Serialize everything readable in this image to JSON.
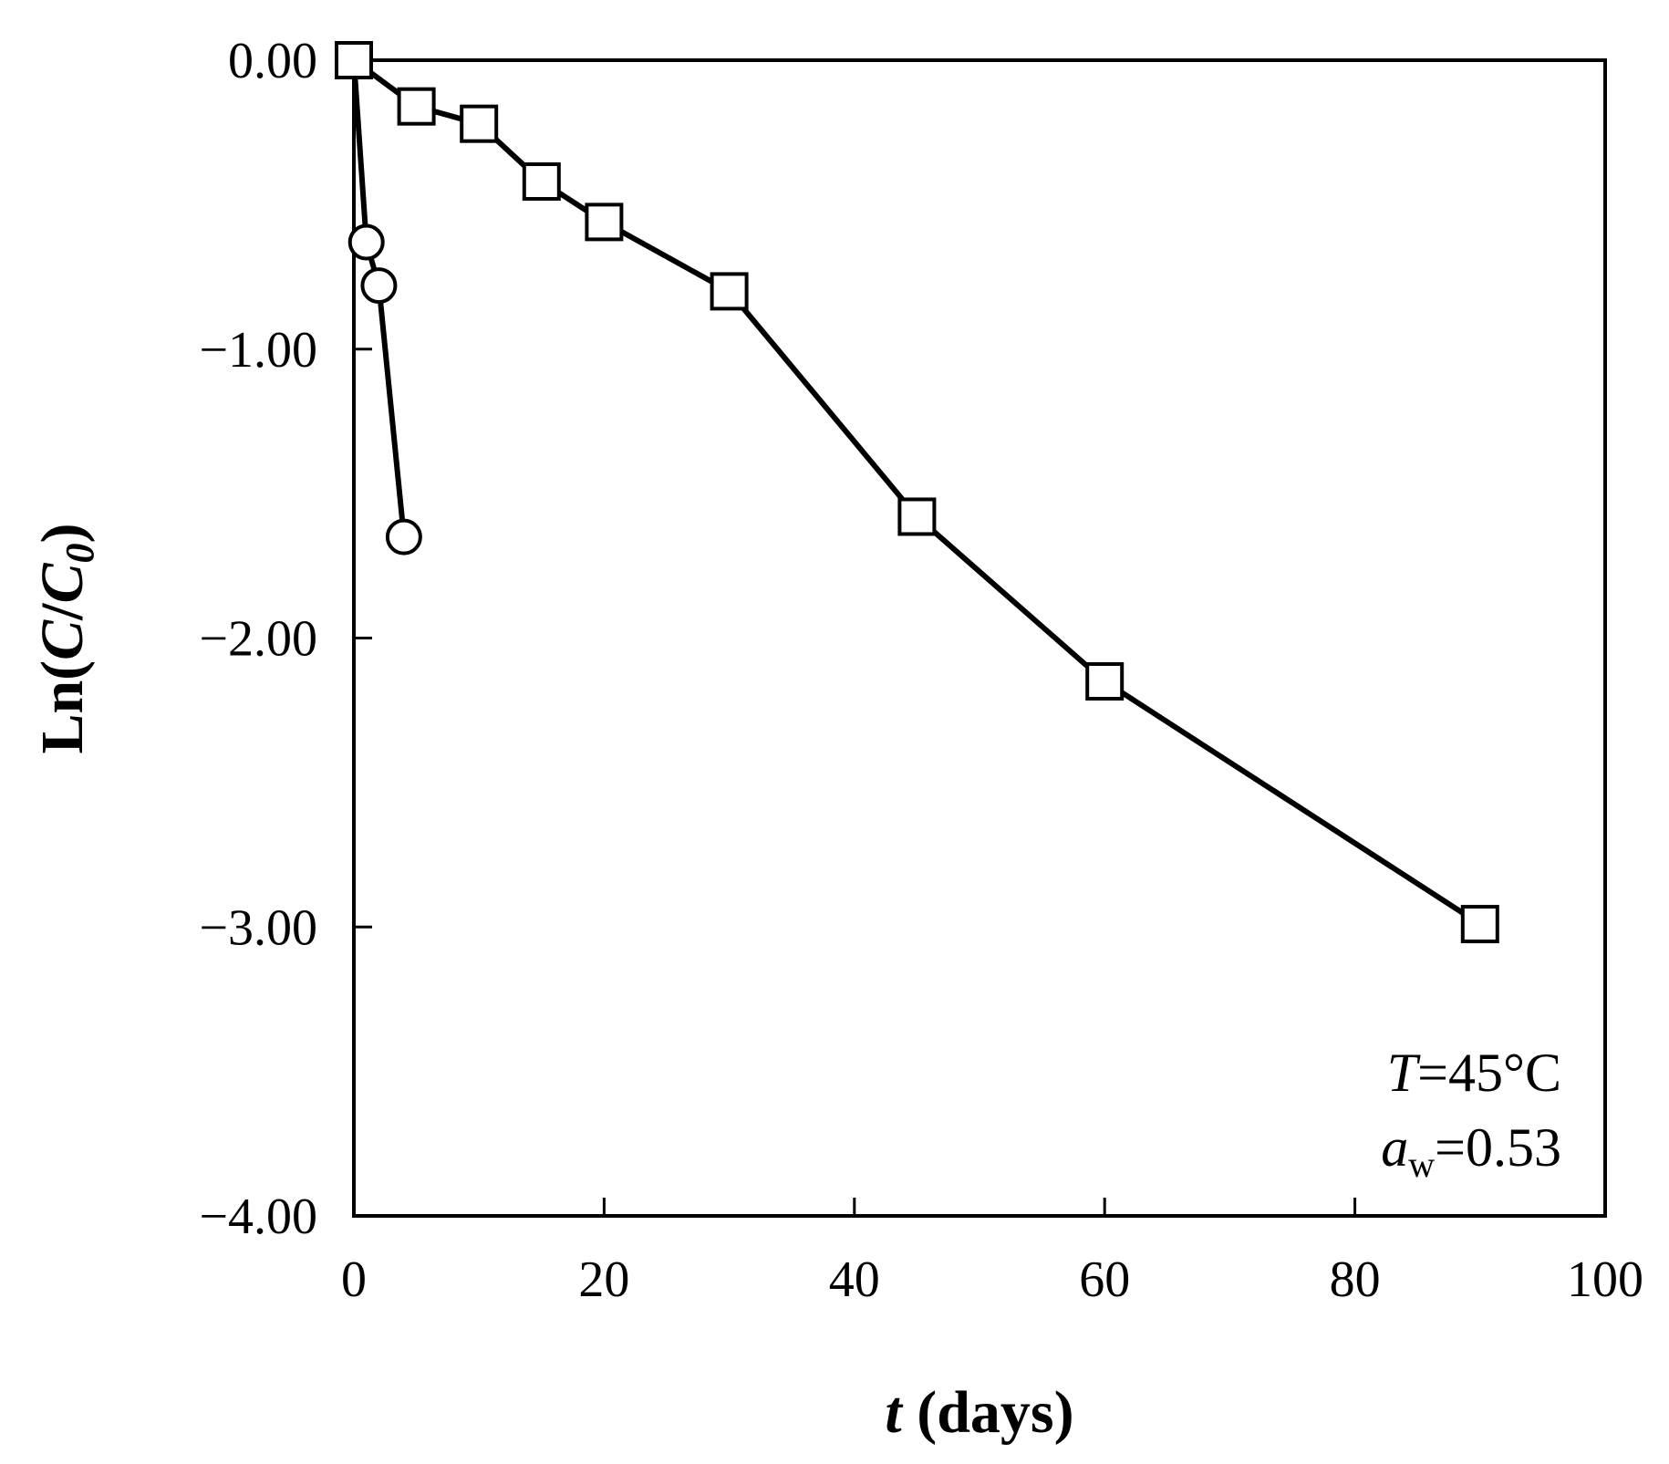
{
  "chart_data": {
    "type": "line",
    "xlabel": {
      "var": "t",
      "rest": " (days)"
    },
    "ylabel": {
      "pre": "Ln(",
      "var1": "C",
      "slash": "/",
      "var2": "C",
      "sub": "0",
      "post": ")"
    },
    "xlim": [
      0,
      100
    ],
    "ylim": [
      -4,
      0
    ],
    "x_ticks": [
      0,
      20,
      40,
      60,
      80,
      100
    ],
    "x_tick_labels": [
      "0",
      "20",
      "40",
      "60",
      "80",
      "100"
    ],
    "y_ticks": [
      0,
      -1,
      -2,
      -3,
      -4
    ],
    "y_tick_labels": [
      "0.00",
      "−1.00",
      "−2.00",
      "−3.00",
      "−4.00"
    ],
    "grid": false,
    "legend": "none",
    "annotations": {
      "temp": {
        "var": "T",
        "rest": "=45°C"
      },
      "aw": {
        "var": "a",
        "sub": "w",
        "rest": "=0.53"
      }
    },
    "series": [
      {
        "marker": "circle",
        "x": [
          0,
          1,
          2,
          4
        ],
        "y": [
          0.0,
          -0.63,
          -0.78,
          -1.65
        ]
      },
      {
        "marker": "square",
        "x": [
          0,
          5,
          10,
          15,
          20,
          30,
          45,
          60,
          90
        ],
        "y": [
          0.0,
          -0.16,
          -0.22,
          -0.42,
          -0.56,
          -0.8,
          -1.58,
          -2.15,
          -2.99
        ]
      }
    ],
    "colors": {
      "line": "#000000",
      "marker_fill": "#ffffff"
    }
  }
}
